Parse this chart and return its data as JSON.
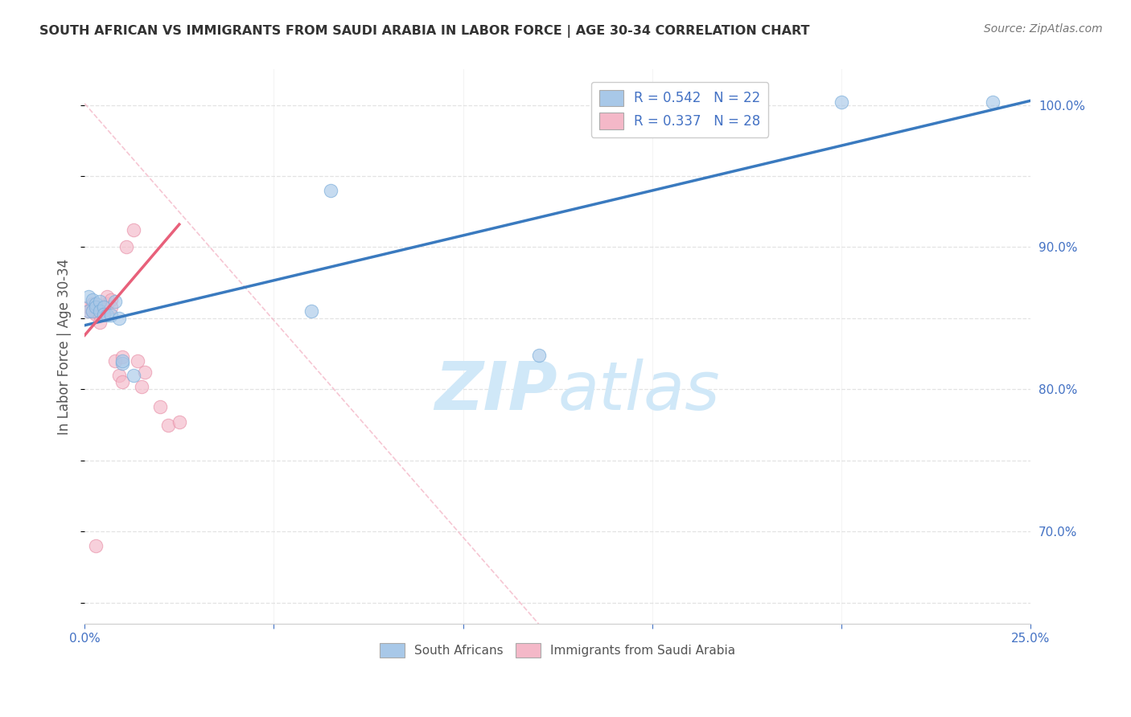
{
  "title": "SOUTH AFRICAN VS IMMIGRANTS FROM SAUDI ARABIA IN LABOR FORCE | AGE 30-34 CORRELATION CHART",
  "source": "Source: ZipAtlas.com",
  "ylabel": "In Labor Force | Age 30-34",
  "xlim": [
    0.0,
    0.25
  ],
  "ylim": [
    0.635,
    1.025
  ],
  "x_ticks": [
    0.0,
    0.05,
    0.1,
    0.15,
    0.2,
    0.25
  ],
  "x_tick_labels": [
    "0.0%",
    "",
    "",
    "",
    "",
    "25.0%"
  ],
  "y_ticks": [
    0.7,
    0.8,
    0.9,
    1.0
  ],
  "y_tick_labels": [
    "70.0%",
    "80.0%",
    "90.0%",
    "100.0%"
  ],
  "legend_entry1": "R = 0.542   N = 22",
  "legend_entry2": "R = 0.337   N = 28",
  "legend_label1": "South Africans",
  "legend_label2": "Immigrants from Saudi Arabia",
  "blue_color": "#a8c8e8",
  "pink_color": "#f4b8c8",
  "blue_edge_color": "#7aadda",
  "pink_edge_color": "#e890a8",
  "blue_line_color": "#3a7abf",
  "pink_line_color": "#e8607a",
  "title_color": "#333333",
  "axis_color": "#4472c4",
  "grid_color": "#dddddd",
  "background_color": "#ffffff",
  "watermark_color": "#d0e8f8",
  "blue_scatter_x": [
    0.001,
    0.001,
    0.002,
    0.002,
    0.003,
    0.003,
    0.004,
    0.004,
    0.005,
    0.005,
    0.006,
    0.007,
    0.008,
    0.009,
    0.01,
    0.01,
    0.013,
    0.06,
    0.065,
    0.12,
    0.2,
    0.24
  ],
  "blue_scatter_y": [
    0.865,
    0.855,
    0.863,
    0.855,
    0.86,
    0.858,
    0.862,
    0.855,
    0.858,
    0.853,
    0.852,
    0.852,
    0.862,
    0.85,
    0.818,
    0.82,
    0.81,
    0.855,
    0.94,
    0.824,
    1.002,
    1.002
  ],
  "pink_scatter_x": [
    0.001,
    0.001,
    0.002,
    0.002,
    0.003,
    0.003,
    0.003,
    0.004,
    0.004,
    0.005,
    0.005,
    0.006,
    0.006,
    0.007,
    0.007,
    0.008,
    0.009,
    0.01,
    0.01,
    0.011,
    0.013,
    0.014,
    0.015,
    0.016,
    0.02,
    0.022,
    0.025,
    0.003
  ],
  "pink_scatter_y": [
    0.858,
    0.855,
    0.855,
    0.86,
    0.858,
    0.855,
    0.853,
    0.852,
    0.847,
    0.858,
    0.853,
    0.86,
    0.865,
    0.863,
    0.858,
    0.82,
    0.81,
    0.805,
    0.823,
    0.9,
    0.912,
    0.82,
    0.802,
    0.812,
    0.788,
    0.775,
    0.777,
    0.69
  ],
  "blue_line_x0": 0.0,
  "blue_line_y0": 0.845,
  "blue_line_x1": 0.25,
  "blue_line_y1": 1.003,
  "pink_line_x0": 0.0,
  "pink_line_y0": 0.838,
  "pink_line_x1": 0.025,
  "pink_line_y1": 0.916,
  "diag_line_color": "#f4b8c8",
  "diag_line_x0": 0.0,
  "diag_line_y0": 1.001,
  "diag_line_x1": 0.12,
  "diag_line_y1": 0.635
}
